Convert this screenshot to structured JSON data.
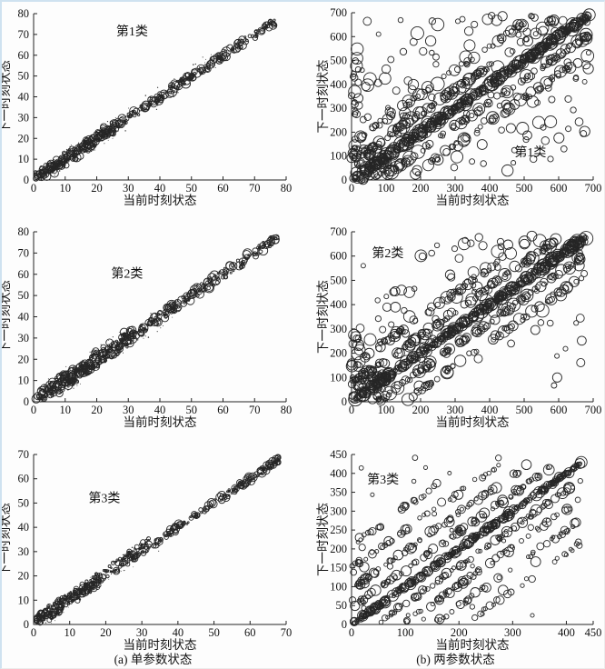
{
  "page": {
    "background": "#fdfdfd",
    "frame_color": "#cfe2f0",
    "axis_color": "#222222",
    "marker_color": "#262626"
  },
  "axis_labels": {
    "x": "当前时刻状态",
    "y": "下一时刻状态"
  },
  "captions": {
    "a": "(a) 单参数状态",
    "b": "(b) 两参数状态"
  },
  "chart_data": [
    {
      "id": "a1",
      "panel": "a",
      "type": "scatter",
      "title": "第1类",
      "title_pos": {
        "x": 0.39,
        "y": 0.13
      },
      "xlabel": "当前时刻状态",
      "ylabel": "下一时刻状态",
      "xlim": [
        0,
        80
      ],
      "ylim": [
        0,
        80
      ],
      "xticks": [
        0,
        10,
        20,
        30,
        40,
        50,
        60,
        70,
        80
      ],
      "yticks": [
        0,
        10,
        20,
        30,
        40,
        50,
        60,
        70,
        80
      ],
      "grid": false,
      "legend": null,
      "marker": "hollow-circle",
      "pattern": "bubbles along diagonal y≈x, 0–77, denser and wider near origin",
      "seed": 101,
      "bands": [
        {
          "offset": 0,
          "count": 320,
          "jitter": 1.9,
          "r": [
            1.0,
            5.2
          ],
          "range": [
            1,
            77
          ]
        },
        {
          "offset": 0,
          "count": 170,
          "jitter": 3.4,
          "r": [
            1.0,
            4.6
          ],
          "range": [
            0.5,
            26
          ]
        },
        {
          "offset": 0,
          "count": 85,
          "jitter": 5.5,
          "r": [
            0.45,
            0.8
          ],
          "range": [
            1,
            62
          ],
          "dot": true
        }
      ],
      "scatter": []
    },
    {
      "id": "b1",
      "panel": "b",
      "type": "scatter",
      "title": "第1类",
      "title_pos": {
        "x": 0.74,
        "y": 0.86
      },
      "xlabel": "当前时刻状态",
      "ylabel": "下一时刻状态",
      "xlim": [
        0,
        700
      ],
      "ylim": [
        0,
        700
      ],
      "xticks": [
        0,
        100,
        200,
        300,
        400,
        500,
        600,
        700
      ],
      "yticks": [
        0,
        100,
        200,
        300,
        400,
        500,
        600,
        700
      ],
      "grid": false,
      "legend": null,
      "marker": "hollow-circle",
      "pattern": "dense main diagonal plus parallel bands at about ±78 and ±158, many scattered outliers",
      "seed": 404,
      "bands": [
        {
          "offset": 0,
          "count": 380,
          "jitter": 9,
          "r": [
            2.2,
            8.0
          ],
          "range": [
            3,
            690
          ]
        },
        {
          "offset": 78,
          "count": 95,
          "jitter": 9,
          "r": [
            2.5,
            7.5
          ],
          "range": [
            10,
            610
          ]
        },
        {
          "offset": -78,
          "count": 95,
          "jitter": 9,
          "r": [
            2.5,
            7.5
          ],
          "range": [
            85,
            690
          ]
        },
        {
          "offset": 158,
          "count": 60,
          "jitter": 10,
          "r": [
            2.5,
            7.0
          ],
          "range": [
            10,
            540
          ]
        },
        {
          "offset": -158,
          "count": 60,
          "jitter": 10,
          "r": [
            2.5,
            7.0
          ],
          "range": [
            165,
            690
          ]
        }
      ],
      "scatter": [
        {
          "count": 55,
          "x": [
            10,
            690
          ],
          "y": [
            10,
            690
          ],
          "r": [
            2.5,
            7.5
          ]
        },
        {
          "count": 70,
          "x": [
            0,
            110
          ],
          "y": [
            0,
            140
          ],
          "r": [
            2.0,
            6.5
          ]
        },
        {
          "count": 16,
          "x": [
            0,
            22
          ],
          "y": [
            90,
            570
          ],
          "r": [
            3.0,
            7.0
          ]
        },
        {
          "count": 30,
          "x": [
            10,
            250
          ],
          "y": [
            150,
            560
          ],
          "r": [
            3.0,
            7.0
          ]
        },
        {
          "count": 22,
          "x": [
            300,
            690
          ],
          "y": [
            60,
            420
          ],
          "r": [
            3.0,
            7.0
          ]
        },
        {
          "count": 18,
          "x": [
            200,
            690
          ],
          "y": [
            600,
            695
          ],
          "r": [
            3.0,
            7.0
          ]
        }
      ]
    },
    {
      "id": "a2",
      "panel": "a",
      "type": "scatter",
      "title": "第2类",
      "title_pos": {
        "x": 0.37,
        "y": 0.27
      },
      "xlabel": "当前时刻状态",
      "ylabel": "下一时刻状态",
      "xlim": [
        0,
        80
      ],
      "ylim": [
        0,
        80
      ],
      "xticks": [
        0,
        10,
        20,
        30,
        40,
        50,
        60,
        70,
        80
      ],
      "yticks": [
        0,
        10,
        20,
        30,
        40,
        50,
        60,
        70,
        80
      ],
      "grid": false,
      "legend": null,
      "marker": "hollow-circle",
      "pattern": "diagonal band y≈x, 0–77, wide dense cloud below x≈32",
      "seed": 202,
      "bands": [
        {
          "offset": 0,
          "count": 320,
          "jitter": 2.3,
          "r": [
            1.0,
            5.2
          ],
          "range": [
            1,
            77
          ]
        },
        {
          "offset": 0,
          "count": 230,
          "jitter": 4.2,
          "r": [
            1.0,
            4.8
          ],
          "range": [
            0.5,
            32
          ]
        },
        {
          "offset": 0,
          "count": 60,
          "jitter": 6.5,
          "r": [
            0.45,
            0.8
          ],
          "range": [
            1,
            45
          ],
          "dot": true
        }
      ],
      "scatter": []
    },
    {
      "id": "b2",
      "panel": "b",
      "type": "scatter",
      "title": "第2类",
      "title_pos": {
        "x": 0.15,
        "y": 0.15
      },
      "xlabel": "当前时刻状态",
      "ylabel": "下一时刻状态",
      "xlim": [
        0,
        700
      ],
      "ylim": [
        0,
        700
      ],
      "xticks": [
        0,
        100,
        200,
        300,
        400,
        500,
        600,
        700
      ],
      "yticks": [
        0,
        100,
        200,
        300,
        400,
        500,
        600,
        700
      ],
      "grid": false,
      "legend": null,
      "marker": "hollow-circle",
      "pattern": "dense main diagonal plus parallel bands at about ±72 and ±150, scattered outliers",
      "seed": 505,
      "bands": [
        {
          "offset": 0,
          "count": 380,
          "jitter": 8,
          "r": [
            2.2,
            8.0
          ],
          "range": [
            3,
            680
          ]
        },
        {
          "offset": 72,
          "count": 100,
          "jitter": 9,
          "r": [
            2.5,
            7.5
          ],
          "range": [
            10,
            600
          ]
        },
        {
          "offset": -72,
          "count": 100,
          "jitter": 9,
          "r": [
            2.5,
            7.5
          ],
          "range": [
            80,
            680
          ]
        },
        {
          "offset": 150,
          "count": 60,
          "jitter": 10,
          "r": [
            2.5,
            7.0
          ],
          "range": [
            10,
            530
          ]
        },
        {
          "offset": -150,
          "count": 60,
          "jitter": 10,
          "r": [
            2.5,
            7.0
          ],
          "range": [
            160,
            680
          ]
        }
      ],
      "scatter": [
        {
          "count": 50,
          "x": [
            10,
            680
          ],
          "y": [
            10,
            680
          ],
          "r": [
            2.5,
            7.5
          ]
        },
        {
          "count": 55,
          "x": [
            0,
            100
          ],
          "y": [
            0,
            130
          ],
          "r": [
            2.0,
            6.5
          ]
        },
        {
          "count": 14,
          "x": [
            0,
            25
          ],
          "y": [
            120,
            330
          ],
          "r": [
            3.0,
            7.0
          ]
        },
        {
          "count": 20,
          "x": [
            150,
            680
          ],
          "y": [
            520,
            670
          ],
          "r": [
            3.0,
            7.0
          ]
        },
        {
          "count": 18,
          "x": [
            60,
            260
          ],
          "y": [
            200,
            480
          ],
          "r": [
            3.0,
            6.5
          ]
        }
      ]
    },
    {
      "id": "a3",
      "panel": "a",
      "type": "scatter",
      "title": "第3类",
      "title_pos": {
        "x": 0.28,
        "y": 0.28
      },
      "xlabel": "当前时刻状态",
      "ylabel": "下一时刻状态",
      "xlim": [
        0,
        70
      ],
      "ylim": [
        0,
        70
      ],
      "xticks": [
        0,
        10,
        20,
        30,
        40,
        50,
        60,
        70
      ],
      "yticks": [
        0,
        10,
        20,
        30,
        40,
        50,
        60,
        70
      ],
      "grid": false,
      "legend": null,
      "marker": "hollow-circle",
      "pattern": "tight diagonal chain y≈x up to 68, small dots around band below x≈36",
      "seed": 303,
      "bands": [
        {
          "offset": 0,
          "count": 290,
          "jitter": 1.3,
          "r": [
            0.9,
            4.8
          ],
          "range": [
            1,
            68
          ]
        },
        {
          "offset": 2.5,
          "count": 100,
          "jitter": 1.1,
          "r": [
            0.8,
            3.2
          ],
          "range": [
            1,
            32
          ]
        },
        {
          "offset": 0,
          "count": 150,
          "jitter": 2.6,
          "r": [
            0.8,
            3.8
          ],
          "range": [
            0.5,
            18
          ]
        },
        {
          "offset": 0,
          "count": 80,
          "jitter": 4.5,
          "r": [
            0.4,
            0.75
          ],
          "range": [
            1,
            36
          ],
          "dot": true
        }
      ],
      "scatter": []
    },
    {
      "id": "b3",
      "panel": "b",
      "type": "scatter",
      "title": "第3类",
      "title_pos": {
        "x": 0.13,
        "y": 0.17
      },
      "xlabel": "当前时刻状态",
      "ylabel": "下一时刻状态",
      "xlim": [
        0,
        450
      ],
      "ylim": [
        0,
        450
      ],
      "xticks": [
        0,
        100,
        200,
        300,
        400,
        450
      ],
      "yticks": [
        0,
        50,
        100,
        150,
        200,
        250,
        300,
        350,
        400,
        450
      ],
      "grid": false,
      "legend": null,
      "marker": "hollow-circle",
      "pattern": "dense main diagonal with short parallel chains at about ±45, ±95, ±150, ±210",
      "seed": 606,
      "bands": [
        {
          "offset": 0,
          "count": 300,
          "jitter": 4,
          "r": [
            1.8,
            6.5
          ],
          "range": [
            2,
            428
          ]
        },
        {
          "offset": 45,
          "count": 85,
          "jitter": 5,
          "r": [
            2.0,
            6.0
          ],
          "range": [
            5,
            380
          ]
        },
        {
          "offset": -45,
          "count": 85,
          "jitter": 5,
          "r": [
            2.0,
            6.0
          ],
          "range": [
            50,
            428
          ]
        },
        {
          "offset": 95,
          "count": 60,
          "jitter": 6,
          "r": [
            2.0,
            6.0
          ],
          "range": [
            5,
            330
          ]
        },
        {
          "offset": -95,
          "count": 60,
          "jitter": 6,
          "r": [
            2.0,
            6.0
          ],
          "range": [
            100,
            428
          ]
        },
        {
          "offset": 150,
          "count": 40,
          "jitter": 6,
          "r": [
            2.0,
            5.5
          ],
          "range": [
            5,
            280
          ]
        },
        {
          "offset": -150,
          "count": 40,
          "jitter": 6,
          "r": [
            2.0,
            5.5
          ],
          "range": [
            155,
            428
          ]
        },
        {
          "offset": 210,
          "count": 22,
          "jitter": 6,
          "r": [
            2.0,
            5.0
          ],
          "range": [
            5,
            215
          ]
        },
        {
          "offset": -210,
          "count": 22,
          "jitter": 6,
          "r": [
            2.0,
            5.0
          ],
          "range": [
            215,
            428
          ]
        }
      ],
      "scatter": [
        {
          "count": 25,
          "x": [
            5,
            445
          ],
          "y": [
            5,
            445
          ],
          "r": [
            2.0,
            5.5
          ]
        },
        {
          "count": 12,
          "x": [
            0,
            30
          ],
          "y": [
            30,
            160
          ],
          "r": [
            2.5,
            6.0
          ]
        }
      ]
    }
  ]
}
